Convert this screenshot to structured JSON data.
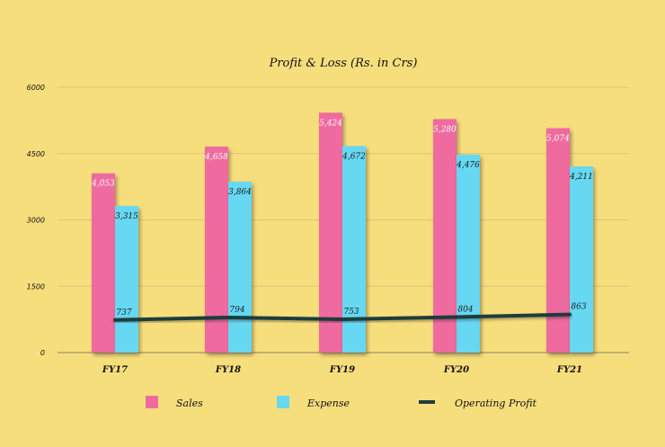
{
  "chart_data": {
    "type": "bar",
    "title": "Profit & Loss (Rs. in Crs)",
    "categories": [
      "FY17",
      "FY18",
      "FY19",
      "FY20",
      "FY21"
    ],
    "series": [
      {
        "name": "Sales",
        "kind": "bar",
        "color": "#ef6b9f",
        "values": [
          4053,
          4658,
          5424,
          5280,
          5074
        ],
        "labels": [
          "4,053",
          "4,658",
          "5,424",
          "5,280",
          "5,074"
        ]
      },
      {
        "name": "Expense",
        "kind": "bar",
        "color": "#66d8f2",
        "values": [
          3315,
          3864,
          4672,
          4476,
          4211
        ],
        "labels": [
          "3,315",
          "3,864",
          "4,672",
          "4,476",
          "4,211"
        ]
      },
      {
        "name": "Operating Profit",
        "kind": "line",
        "color": "#1f3d3d",
        "values": [
          737,
          794,
          753,
          804,
          863
        ],
        "labels": [
          "737",
          "794",
          "753",
          "804",
          "863"
        ]
      }
    ],
    "yticks": [
      0,
      1500,
      3000,
      4500,
      6000
    ],
    "ylim": [
      0,
      6000
    ],
    "grid": true,
    "legend_position": "bottom"
  }
}
